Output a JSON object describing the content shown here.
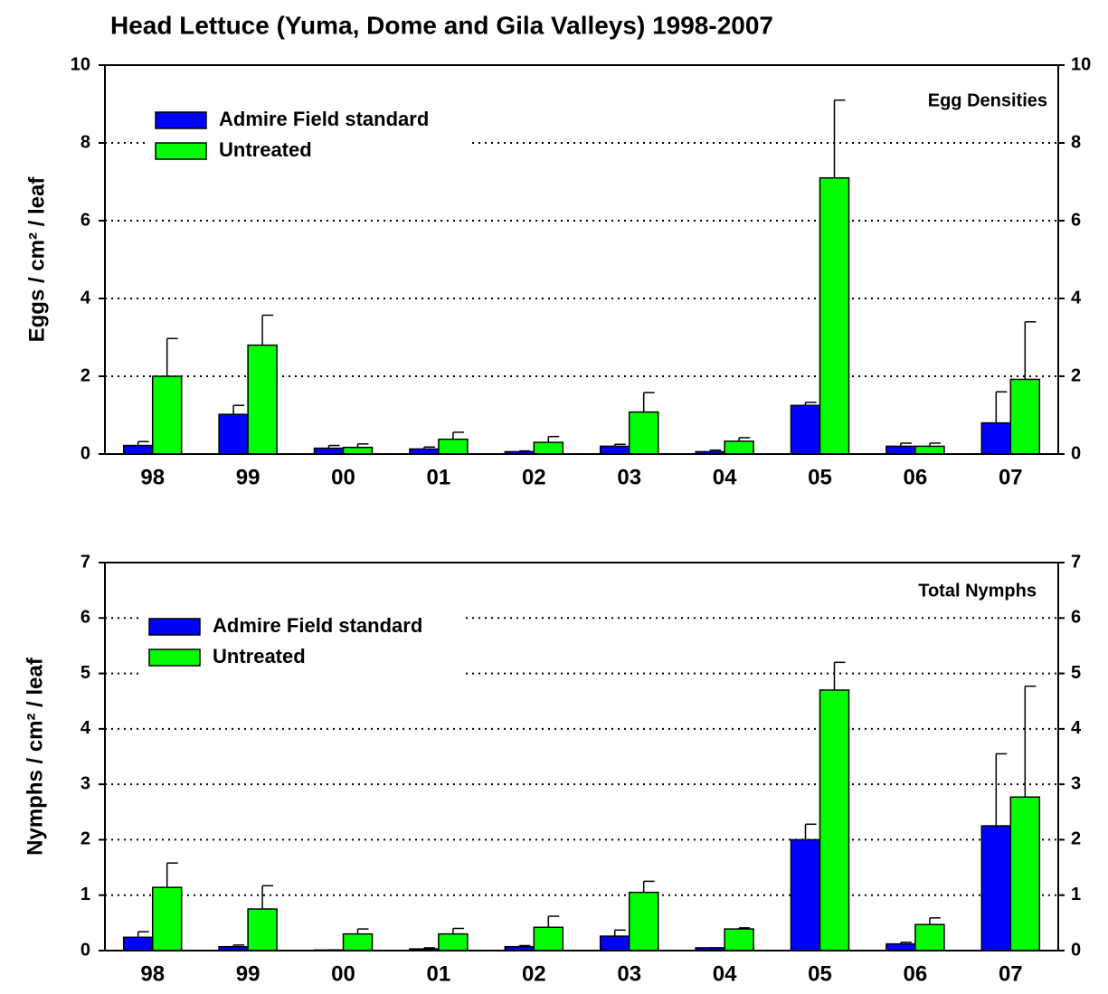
{
  "title": "Head Lettuce (Yuma, Dome and Gila Valleys) 1998-2007",
  "chart_data": [
    {
      "type": "bar",
      "annotation": "Egg Densities",
      "y_label": "Eggs / cm² / leaf",
      "categories": [
        "98",
        "99",
        "00",
        "01",
        "02",
        "03",
        "04",
        "05",
        "06",
        "07"
      ],
      "series": [
        {
          "name": "Admire Field standard",
          "color": "#0000ff",
          "values": [
            0.22,
            1.02,
            0.15,
            0.13,
            0.06,
            0.2,
            0.06,
            1.25,
            0.2,
            0.8
          ],
          "errors": [
            0.1,
            0.23,
            0.07,
            0.05,
            0.02,
            0.05,
            0.04,
            0.08,
            0.08,
            0.8
          ]
        },
        {
          "name": "Untreated",
          "color": "#00ff00",
          "values": [
            2.0,
            2.8,
            0.17,
            0.38,
            0.3,
            1.08,
            0.33,
            7.1,
            0.2,
            1.92
          ],
          "errors": [
            0.97,
            0.77,
            0.09,
            0.18,
            0.15,
            0.5,
            0.09,
            2.0,
            0.08,
            1.48
          ]
        }
      ],
      "ylim": [
        0,
        10
      ],
      "yticks": [
        0,
        2,
        4,
        6,
        8,
        10
      ],
      "grid": true
    },
    {
      "type": "bar",
      "annotation": "Total Nymphs",
      "y_label": "Nymphs / cm² / leaf",
      "categories": [
        "98",
        "99",
        "00",
        "01",
        "02",
        "03",
        "04",
        "05",
        "06",
        "07"
      ],
      "series": [
        {
          "name": "Admire Field standard",
          "color": "#0000ff",
          "values": [
            0.24,
            0.07,
            0.01,
            0.03,
            0.07,
            0.26,
            0.05,
            2.0,
            0.12,
            2.25
          ],
          "errors": [
            0.1,
            0.03,
            0.0,
            0.02,
            0.02,
            0.11,
            0.0,
            0.28,
            0.03,
            1.3
          ]
        },
        {
          "name": "Untreated",
          "color": "#00ff00",
          "values": [
            1.14,
            0.75,
            0.3,
            0.3,
            0.42,
            1.05,
            0.39,
            4.7,
            0.47,
            2.77
          ],
          "errors": [
            0.44,
            0.42,
            0.09,
            0.1,
            0.2,
            0.2,
            0.02,
            0.5,
            0.12,
            2.0
          ]
        }
      ],
      "ylim": [
        0,
        7
      ],
      "yticks": [
        0,
        1,
        2,
        3,
        4,
        5,
        6,
        7
      ],
      "grid": true
    }
  ]
}
